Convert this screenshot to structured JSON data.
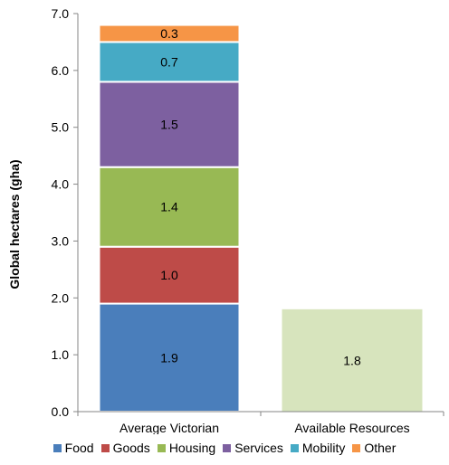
{
  "chart_data": {
    "type": "bar",
    "stacked": true,
    "categories": [
      "Average Victorian",
      "Available Resources"
    ],
    "series": [
      {
        "name": "Food",
        "color": "#4a7ebb",
        "values": [
          1.9,
          null
        ],
        "labels": [
          "1.9",
          ""
        ]
      },
      {
        "name": "Goods",
        "color": "#be4b48",
        "values": [
          1.0,
          null
        ],
        "labels": [
          "1.0",
          ""
        ]
      },
      {
        "name": "Housing",
        "color": "#98b954",
        "values": [
          1.4,
          null
        ],
        "labels": [
          "1.4",
          ""
        ]
      },
      {
        "name": "Services",
        "color": "#7d60a0",
        "values": [
          1.5,
          null
        ],
        "labels": [
          "1.5",
          ""
        ]
      },
      {
        "name": "Mobility",
        "color": "#46aac5",
        "values": [
          0.7,
          null
        ],
        "labels": [
          "0.7",
          ""
        ]
      },
      {
        "name": "Other",
        "color": "#f69546",
        "values": [
          0.3,
          null
        ],
        "labels": [
          "0.3",
          ""
        ]
      }
    ],
    "extra_bars": [
      {
        "category": "Available Resources",
        "value": 1.8,
        "label": "1.8",
        "color": "#d7e4bd"
      }
    ],
    "title": "",
    "xlabel": "",
    "ylabel": "Global hectares (gha)",
    "ylim": [
      0,
      7
    ],
    "yticks": [
      "0.0",
      "1.0",
      "2.0",
      "3.0",
      "4.0",
      "5.0",
      "6.0",
      "7.0"
    ],
    "grid": false,
    "legend_position": "bottom"
  },
  "legend": {
    "items": [
      {
        "label": "Food",
        "color": "#4a7ebb"
      },
      {
        "label": "Goods",
        "color": "#be4b48"
      },
      {
        "label": "Housing",
        "color": "#98b954"
      },
      {
        "label": "Services",
        "color": "#7d60a0"
      },
      {
        "label": "Mobility",
        "color": "#46aac5"
      },
      {
        "label": "Other",
        "color": "#f69546"
      }
    ]
  }
}
